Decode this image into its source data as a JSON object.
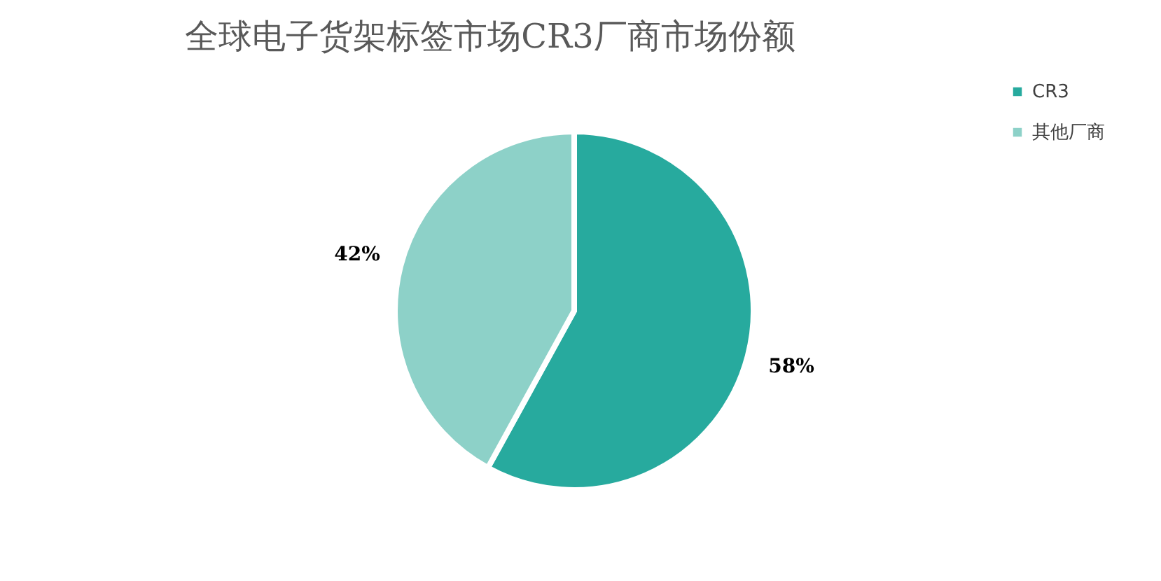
{
  "chart_data": {
    "type": "pie",
    "title": "全球电子货架标签市场CR3厂商市场份额",
    "categories": [
      "CR3",
      "其他厂商"
    ],
    "values": [
      58,
      42
    ],
    "colors": [
      "#27aa9e",
      "#8dd1c8"
    ],
    "value_labels": [
      "58%",
      "42%"
    ],
    "legend": "right"
  }
}
